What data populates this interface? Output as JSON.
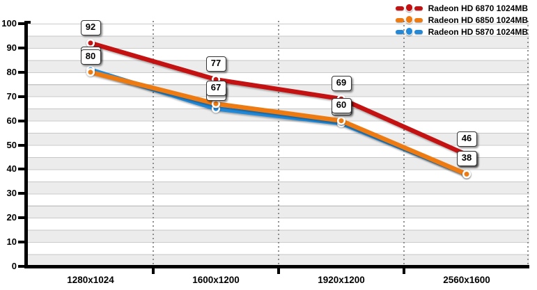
{
  "chart_data": {
    "type": "line",
    "title": "",
    "categories": [
      "1280x1024",
      "1600x1200",
      "1920x1200",
      "2560x1600"
    ],
    "series": [
      {
        "name": "Radeon HD 6870 1024MB",
        "color": "#c41111",
        "values": [
          92,
          77,
          69,
          46
        ]
      },
      {
        "name": "Radeon HD 6850 1024MB",
        "color": "#ee7b12",
        "values": [
          80,
          67,
          60,
          38
        ]
      },
      {
        "name": "Radeon HD 5870 1024MB",
        "color": "#2189d8",
        "values": [
          81,
          65,
          59,
          38
        ]
      }
    ],
    "ylim": [
      0,
      100
    ],
    "ytick_interval": 10,
    "yticks": [
      0,
      10,
      20,
      30,
      40,
      50,
      60,
      70,
      80,
      90,
      100
    ],
    "grid": "horizontal-stripes",
    "legend_position": "top-right",
    "styles": {
      "stripe_color": "#ececec",
      "gridline_color": "#b9b9b9",
      "separator_color": "#8d8d8d",
      "axis_color": "#000000",
      "badge_bg": "#ffffff",
      "badge_border": "#333333"
    }
  }
}
